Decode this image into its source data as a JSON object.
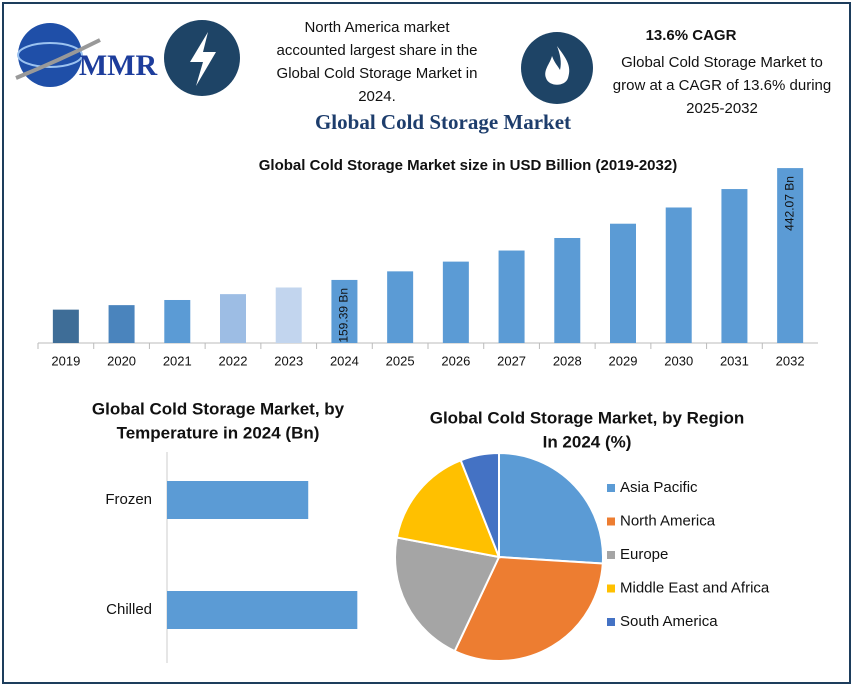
{
  "header": {
    "logo": "MMR",
    "title": "Global Cold Storage Market",
    "callout_left": [
      "North America market",
      "accounted largest share in the",
      "Global Cold Storage Market in",
      "2024."
    ],
    "callout_right_title": "13.6% CAGR",
    "callout_right": [
      "Global Cold Storage Market to",
      "grow at a CAGR of 13.6% during",
      "2025-2032"
    ]
  },
  "chart_data": [
    {
      "type": "bar",
      "title": "Global Cold Storage Market size in USD Billion (2019-2032)",
      "categories": [
        "2019",
        "2020",
        "2021",
        "2022",
        "2023",
        "2024",
        "2025",
        "2026",
        "2027",
        "2028",
        "2029",
        "2030",
        "2031",
        "2032"
      ],
      "values": [
        84.3,
        95.7,
        108.7,
        123.5,
        140.3,
        159.39,
        181.1,
        205.7,
        233.7,
        265.4,
        301.5,
        342.5,
        389.1,
        442.07
      ],
      "value_labels": [
        null,
        null,
        null,
        null,
        null,
        "159.39 Bn",
        null,
        null,
        null,
        null,
        null,
        null,
        null,
        "442.07 Bn"
      ],
      "colors": [
        "#3e6d97",
        "#4a84bd",
        "#5b9bd5",
        "#9dbde4",
        "#c2d5ee",
        "#5b9bd5",
        "#5b9bd5",
        "#5b9bd5",
        "#5b9bd5",
        "#5b9bd5",
        "#5b9bd5",
        "#5b9bd5",
        "#5b9bd5",
        "#5b9bd5"
      ],
      "ylim": [
        0,
        460
      ]
    },
    {
      "type": "hbar",
      "title": [
        "Global Cold Storage Market, by",
        "Temperature in 2024 (Bn)"
      ],
      "categories": [
        "Frozen",
        "Chilled"
      ],
      "values": [
        67.9,
        91.5
      ],
      "color": "#5b9bd5",
      "xlim": [
        0,
        100
      ]
    },
    {
      "type": "pie",
      "title": [
        "Global Cold Storage Market, by Region",
        "In 2024 (%)"
      ],
      "categories": [
        "Asia Pacific",
        "North America",
        "Europe",
        "Middle East and Africa",
        "South America"
      ],
      "values": [
        26,
        31,
        21,
        16,
        6
      ],
      "colors": [
        "#5b9bd5",
        "#ed7d31",
        "#a5a5a5",
        "#ffc000",
        "#4472c4"
      ]
    }
  ]
}
